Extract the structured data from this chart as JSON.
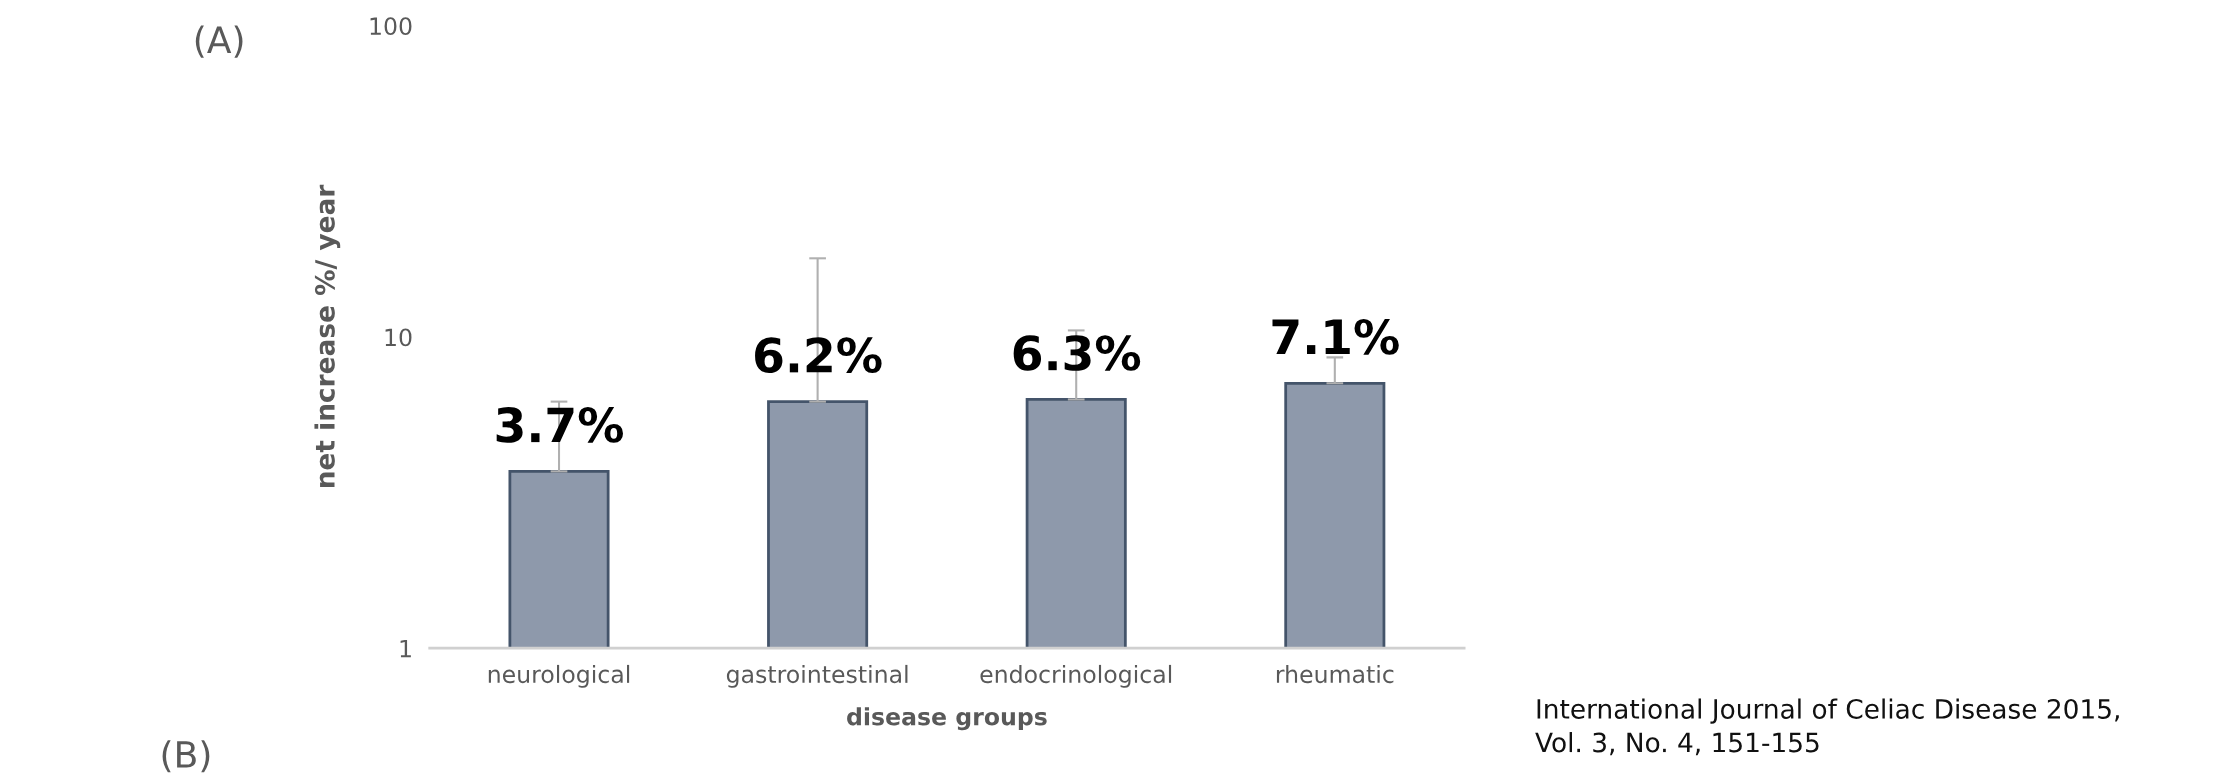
{
  "chart_data": {
    "type": "bar",
    "categories": [
      "neurological",
      "gastrointestinal",
      "endocrinological",
      "rheumatic"
    ],
    "values": [
      3.7,
      6.2,
      6.3,
      7.1
    ],
    "errors": [
      [
        3.7,
        6.2
      ],
      [
        6.2,
        17.9
      ],
      [
        6.3,
        10.5
      ],
      [
        7.1,
        8.6
      ]
    ],
    "value_labels": [
      "3.7%",
      "6.2%",
      "6.3%",
      "7.1%"
    ],
    "color": "#8e99ab",
    "xlabel": "disease groups",
    "ylabel": "net increase %/ year",
    "log": true,
    "ylim": [
      1,
      100
    ],
    "yticks": [
      1,
      10,
      100
    ],
    "grid": false,
    "annotations": [
      "(A)",
      "(B)",
      "International Journal of Celiac Disease 2015,\nVol. 3, No. 4, 151-155"
    ]
  }
}
